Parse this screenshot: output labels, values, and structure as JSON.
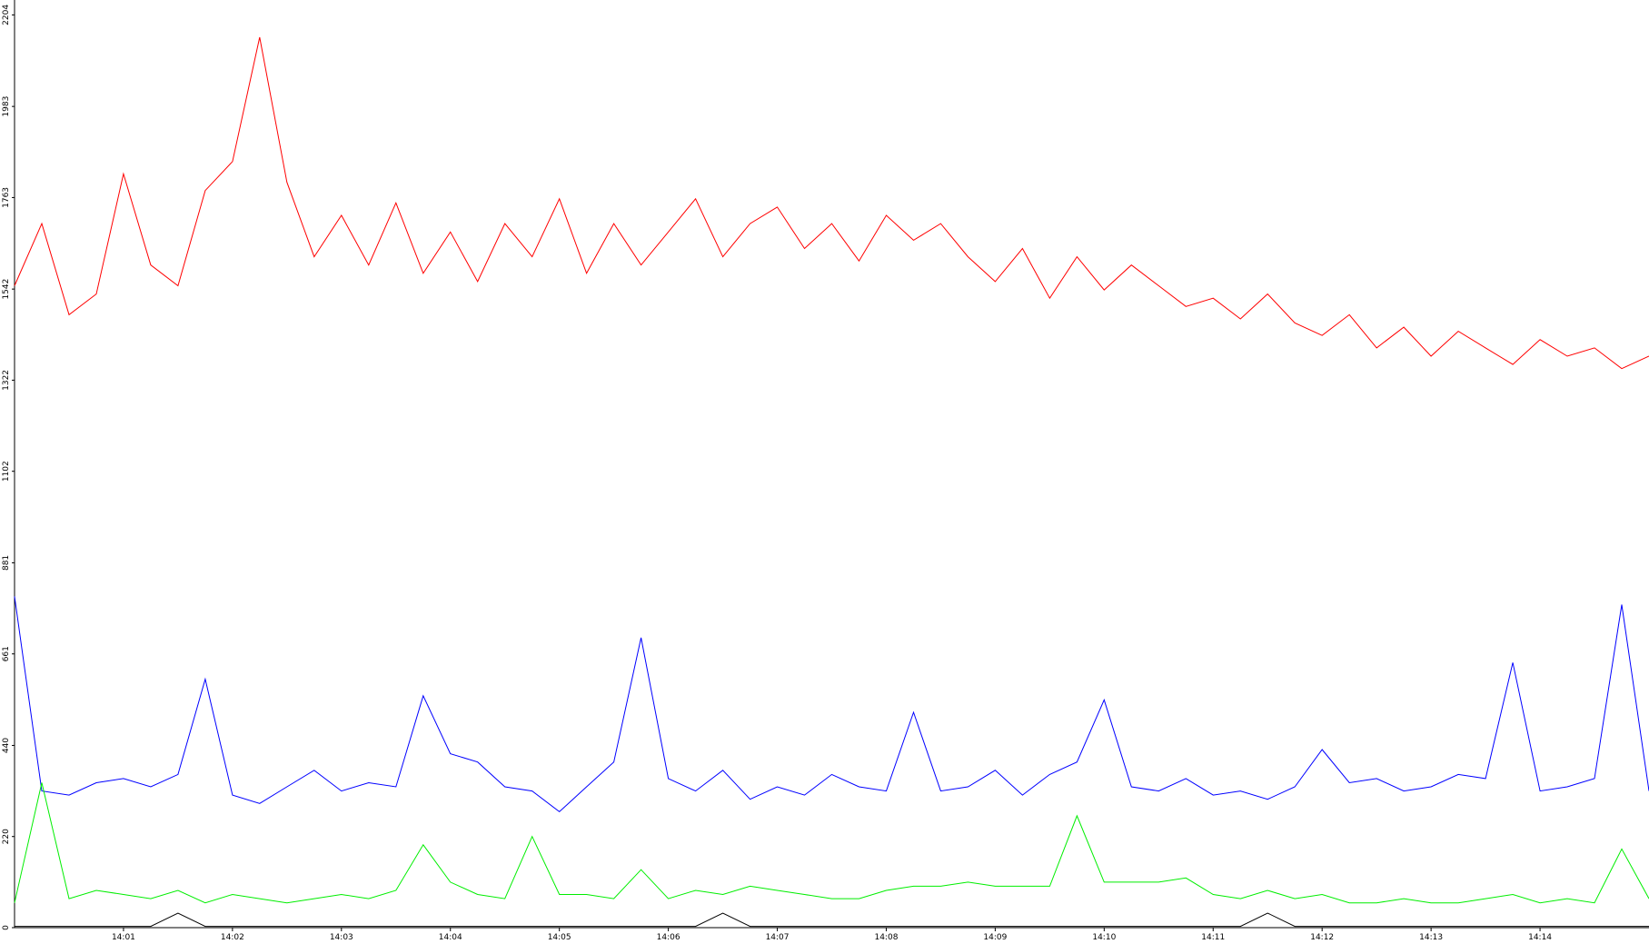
{
  "chart_data": {
    "type": "line",
    "x": [
      0,
      0.25,
      0.5,
      0.75,
      1,
      1.25,
      1.5,
      1.75,
      2,
      2.25,
      2.5,
      2.75,
      3,
      3.25,
      3.5,
      3.75,
      4,
      4.25,
      4.5,
      4.75,
      5,
      5.25,
      5.5,
      5.75,
      6,
      6.25,
      6.5,
      6.75,
      7,
      7.25,
      7.5,
      7.75,
      8,
      8.25,
      8.5,
      8.75,
      9,
      9.25,
      9.5,
      9.75,
      10,
      10.25,
      10.5,
      10.75,
      11,
      11.25,
      11.5,
      11.75,
      12,
      12.25,
      12.5,
      12.75,
      13,
      13.25,
      13.5,
      13.75,
      14,
      14.25,
      14.5,
      14.75,
      15
    ],
    "series": [
      {
        "color": "#ff0000",
        "values": [
          1550,
          1700,
          1480,
          1530,
          1820,
          1600,
          1550,
          1780,
          1850,
          2150,
          1800,
          1620,
          1720,
          1600,
          1750,
          1580,
          1680,
          1560,
          1700,
          1620,
          1760,
          1580,
          1700,
          1600,
          1680,
          1760,
          1620,
          1700,
          1740,
          1640,
          1700,
          1610,
          1720,
          1660,
          1700,
          1620,
          1560,
          1640,
          1520,
          1620,
          1540,
          1600,
          1550,
          1500,
          1520,
          1470,
          1530,
          1460,
          1430,
          1480,
          1400,
          1450,
          1380,
          1440,
          1400,
          1360,
          1420,
          1380,
          1400,
          1350,
          1380
        ]
      },
      {
        "color": "#0000ff",
        "values": [
          800,
          330,
          320,
          350,
          360,
          340,
          370,
          600,
          320,
          300,
          340,
          380,
          330,
          350,
          340,
          560,
          420,
          400,
          340,
          330,
          280,
          340,
          400,
          700,
          360,
          330,
          380,
          310,
          340,
          320,
          370,
          340,
          330,
          520,
          330,
          340,
          380,
          320,
          370,
          400,
          550,
          340,
          330,
          360,
          320,
          330,
          310,
          340,
          430,
          350,
          360,
          330,
          340,
          370,
          360,
          640,
          330,
          340,
          360,
          780,
          330
        ]
      },
      {
        "color": "#00ee00",
        "values": [
          60,
          350,
          70,
          90,
          80,
          70,
          90,
          60,
          80,
          70,
          60,
          70,
          80,
          70,
          90,
          200,
          110,
          80,
          70,
          220,
          80,
          80,
          70,
          140,
          70,
          90,
          80,
          100,
          90,
          80,
          70,
          70,
          90,
          100,
          100,
          110,
          100,
          100,
          100,
          270,
          110,
          110,
          110,
          120,
          80,
          70,
          90,
          70,
          80,
          60,
          60,
          70,
          60,
          60,
          70,
          80,
          60,
          70,
          60,
          190,
          70
        ]
      },
      {
        "color": "#000000",
        "values": [
          3,
          3,
          3,
          3,
          3,
          3,
          35,
          3,
          3,
          3,
          3,
          3,
          3,
          3,
          3,
          3,
          3,
          3,
          3,
          3,
          3,
          3,
          3,
          3,
          3,
          3,
          35,
          3,
          3,
          3,
          3,
          3,
          3,
          3,
          3,
          3,
          3,
          3,
          3,
          3,
          3,
          3,
          3,
          3,
          3,
          3,
          35,
          3,
          3,
          3,
          3,
          3,
          3,
          3,
          3,
          3,
          3,
          3,
          3,
          3,
          3
        ]
      }
    ],
    "xlim": [
      0,
      15
    ],
    "xticks": [
      {
        "value": 1,
        "label": "14:01"
      },
      {
        "value": 2,
        "label": "14:02"
      },
      {
        "value": 3,
        "label": "14:03"
      },
      {
        "value": 4,
        "label": "14:04"
      },
      {
        "value": 5,
        "label": "14:05"
      },
      {
        "value": 6,
        "label": "14:06"
      },
      {
        "value": 7,
        "label": "14:07"
      },
      {
        "value": 8,
        "label": "14:08"
      },
      {
        "value": 9,
        "label": "14:09"
      },
      {
        "value": 10,
        "label": "14:10"
      },
      {
        "value": 11,
        "label": "14:11"
      },
      {
        "value": 12,
        "label": "14:12"
      },
      {
        "value": 13,
        "label": "14:13"
      },
      {
        "value": 14,
        "label": "14:14"
      }
    ],
    "ylim": [
      0,
      2240
    ],
    "yticks": [
      0,
      220,
      440,
      661,
      881,
      1102,
      1322,
      1542,
      1763,
      1983,
      2204
    ]
  }
}
